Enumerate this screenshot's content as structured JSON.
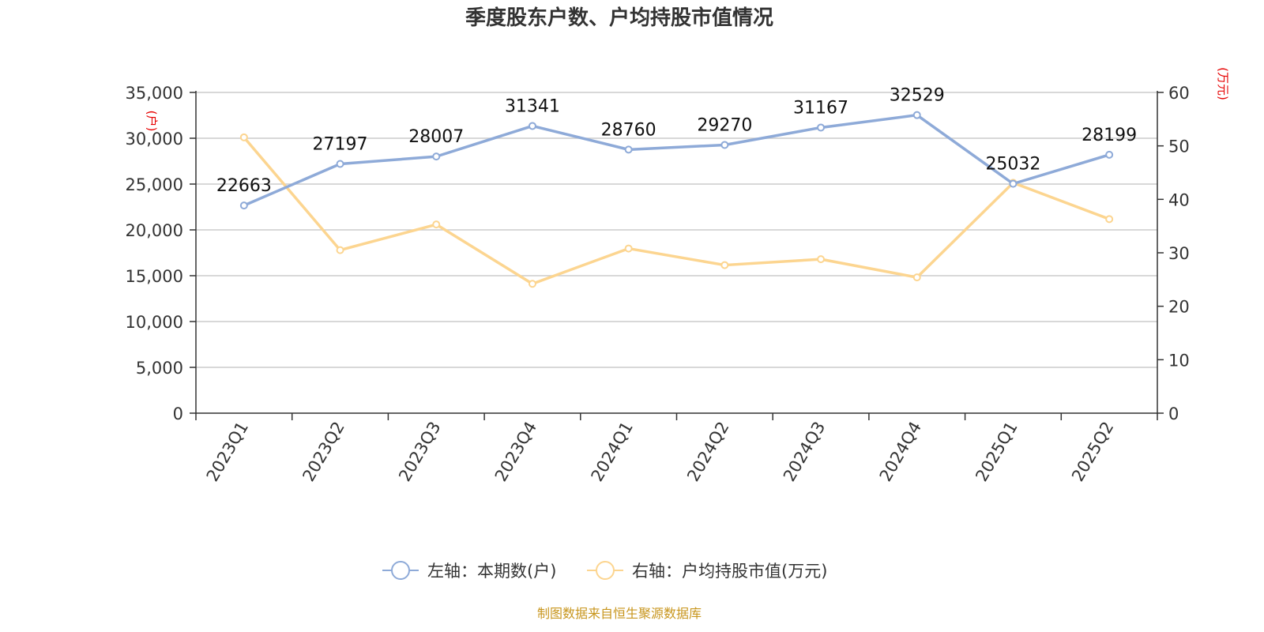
{
  "chart_data": {
    "type": "line",
    "title": "季度股东户数、户均持股市值情况",
    "categories": [
      "2023Q1",
      "2023Q2",
      "2023Q3",
      "2023Q4",
      "2024Q1",
      "2024Q2",
      "2024Q3",
      "2024Q4",
      "2025Q1",
      "2025Q2"
    ],
    "left_axis": {
      "unit": "(户)",
      "ylim": [
        0,
        35000
      ],
      "ticks": [
        "0",
        "5,000",
        "10,000",
        "15,000",
        "20,000",
        "25,000",
        "30,000",
        "35,000"
      ]
    },
    "right_axis": {
      "unit": "(万元)",
      "ylim": [
        0,
        60
      ],
      "ticks": [
        "0",
        "10",
        "20",
        "30",
        "40",
        "50",
        "60"
      ]
    },
    "series": [
      {
        "name": "左轴：本期数(户)",
        "axis": "left",
        "color": "#8eaad8",
        "values": [
          22663,
          27197,
          28007,
          31341,
          28760,
          29270,
          31167,
          32529,
          25032,
          28199
        ],
        "labels": [
          "22663",
          "27197",
          "28007",
          "31341",
          "28760",
          "29270",
          "31167",
          "32529",
          "25032",
          "28199"
        ]
      },
      {
        "name": "右轴：户均持股市值(万元)",
        "axis": "right",
        "color": "#fcd590",
        "values": [
          51.6,
          30.5,
          35.3,
          24.2,
          30.8,
          27.7,
          28.8,
          25.4,
          43.1,
          36.3
        ]
      }
    ],
    "grid": true,
    "legend_position": "bottom"
  },
  "footer": {
    "source": "制图数据来自恒生聚源数据库"
  }
}
